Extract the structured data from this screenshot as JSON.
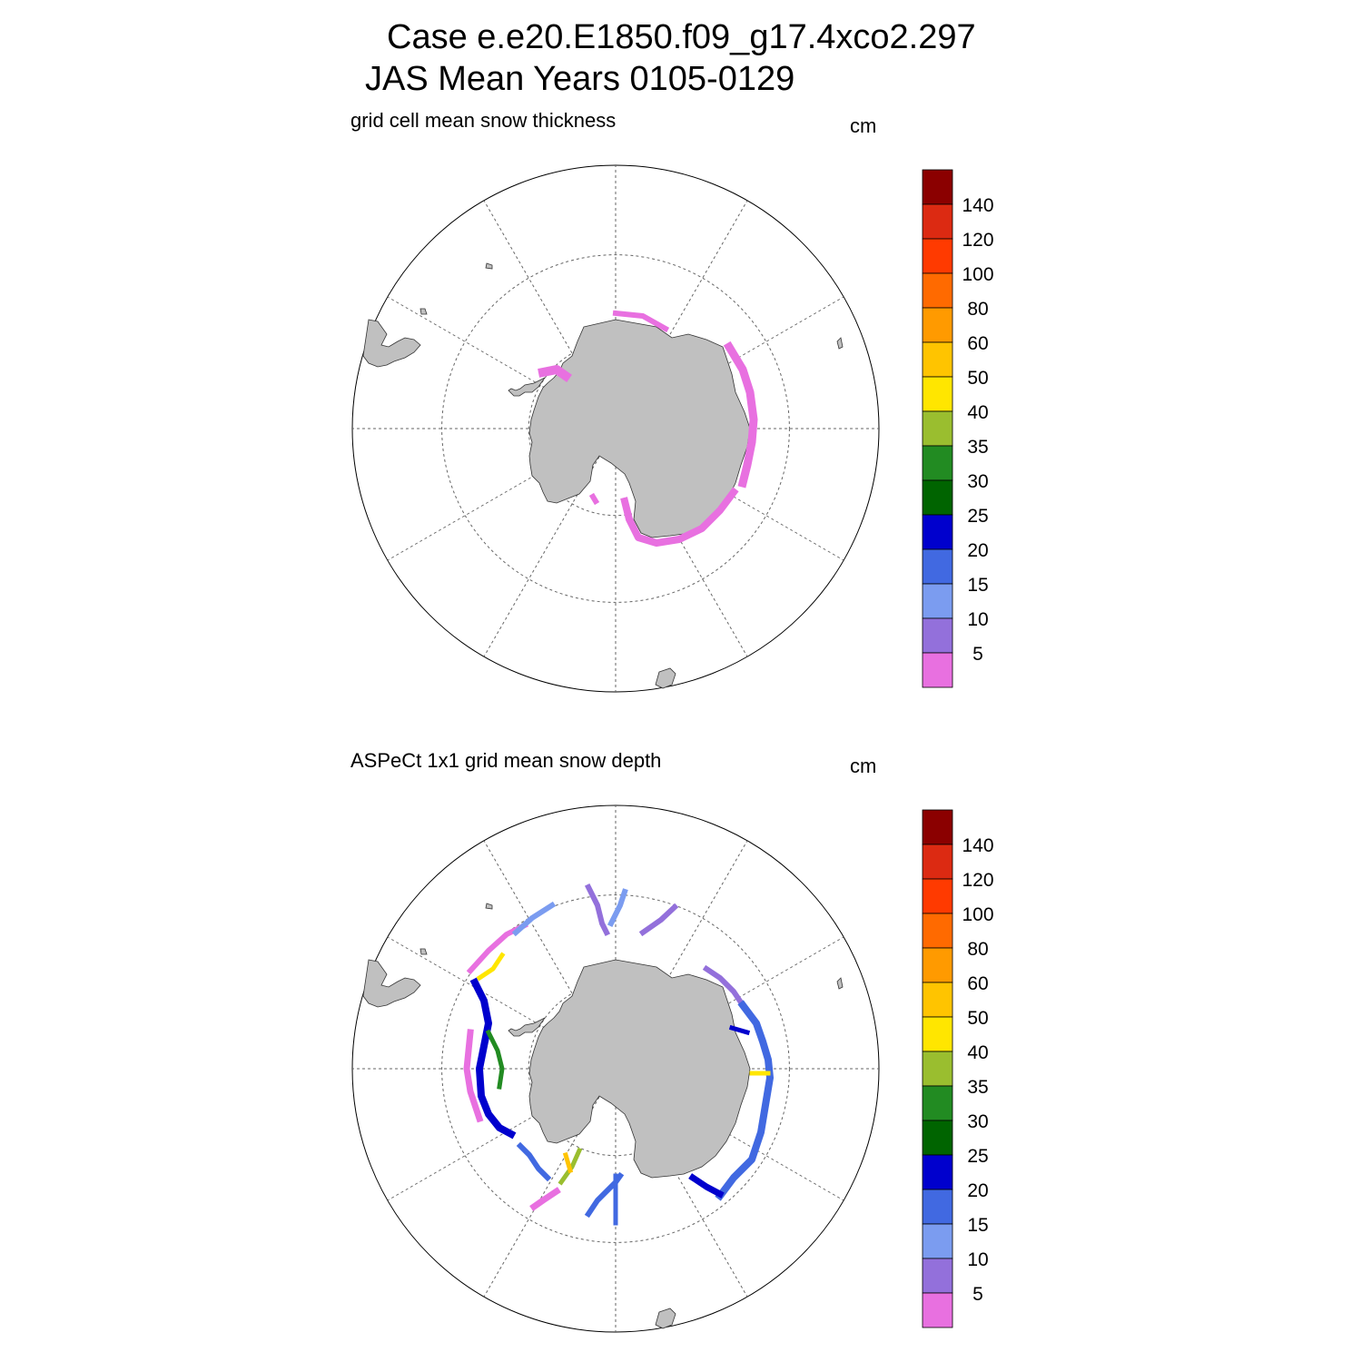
{
  "header": {
    "line1": "Case e.e20.E1850.f09_g17.4xco2.297",
    "line2": "JAS Mean   Years 0105-0129"
  },
  "legend": {
    "labels": [
      "140",
      "120",
      "100",
      "80",
      "60",
      "50",
      "40",
      "35",
      "30",
      "25",
      "20",
      "15",
      "10",
      "5"
    ],
    "colors": [
      "#8b0000",
      "#dc2a12",
      "#ff3a00",
      "#ff6a00",
      "#ff9a00",
      "#ffc400",
      "#ffe600",
      "#9abe2f",
      "#228b22",
      "#006400",
      "#0000cd",
      "#4169e1",
      "#7b9cf0",
      "#9370db",
      "#e870e0"
    ]
  },
  "panels": [
    {
      "title": "grid cell mean snow thickness",
      "units": "cm"
    },
    {
      "title": "ASPeCt 1x1 grid mean snow depth",
      "units": "cm"
    }
  ],
  "map": {
    "land_color": "#c0c0c0",
    "projection": "south-polar-stereographic"
  }
}
